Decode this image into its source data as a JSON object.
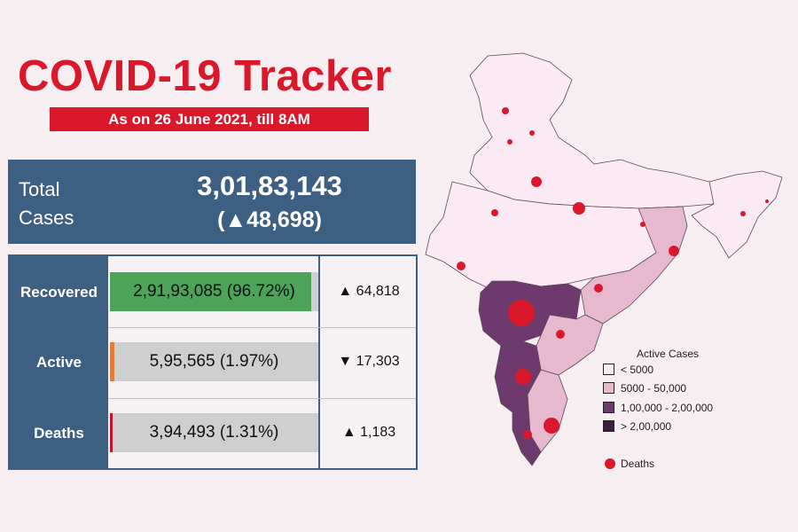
{
  "header": {
    "title": "COVID-19 Tracker",
    "subtitle": "As on 26 June 2021, till 8AM"
  },
  "total": {
    "label_line1": "Total",
    "label_line2": "Cases",
    "value": "3,01,83,143",
    "delta": "(▲48,698)"
  },
  "rows": [
    {
      "label": "Recovered",
      "value": "2,91,93,085 (96.72%)",
      "share": 0.9672,
      "color": "#4da35a",
      "delta": "▲ 64,818"
    },
    {
      "label": "Active",
      "value": "5,95,565 (1.97%)",
      "share": 0.0197,
      "color": "#e07b39",
      "delta": "▼ 17,303"
    },
    {
      "label": "Deaths",
      "value": "3,94,493 (1.31%)",
      "share": 0.0131,
      "color": "#c4162a",
      "delta": "▲ 1,183"
    }
  ],
  "legend": {
    "title": "Active Cases",
    "items": [
      {
        "label": "< 5000",
        "color": "#fbe9f4"
      },
      {
        "label": "5000 - 50,000",
        "color": "#e7b9cf"
      },
      {
        "label": "1,00,000 - 2,00,000",
        "color": "#6e3a6e"
      },
      {
        "label": "> 2,00,000",
        "color": "#3e1c3e"
      }
    ],
    "deaths_label": "Deaths"
  },
  "colors": {
    "brand_red": "#d9192b",
    "panel_blue": "#3d5f82"
  }
}
